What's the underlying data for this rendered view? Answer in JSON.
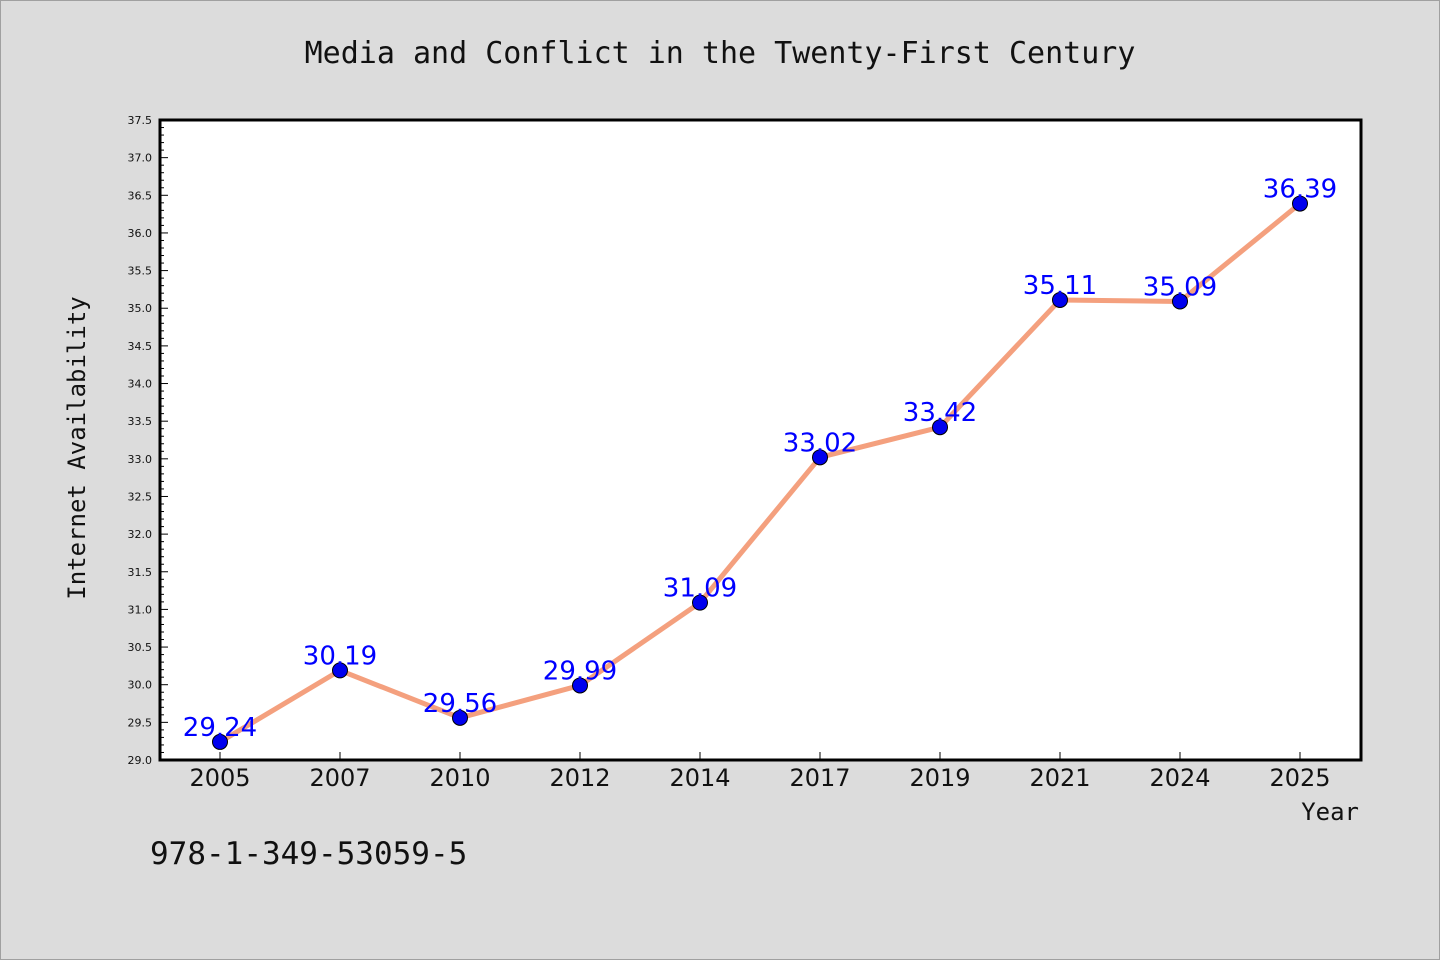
{
  "chart_data": {
    "type": "line",
    "title": "Media and Conflict in the Twenty-First Century",
    "xlabel": "Year",
    "ylabel": "Internet Availability",
    "categories": [
      "2005",
      "2007",
      "2010",
      "2012",
      "2014",
      "2017",
      "2019",
      "2021",
      "2024",
      "2025"
    ],
    "series": [
      {
        "values": [
          29.24,
          30.19,
          29.56,
          29.99,
          31.09,
          33.02,
          33.42,
          35.11,
          35.09,
          36.39
        ],
        "data_labels": [
          "29.24",
          "30.19",
          "29.56",
          "29.99",
          "31.09",
          "33.02",
          "33.42",
          "35.11",
          "35.09",
          "36.39"
        ],
        "line_color": "#f4a07e",
        "marker_color": "#0000ee"
      }
    ],
    "ylim": [
      29.0,
      37.5
    ],
    "yticks": [
      "29.0",
      "29.5",
      "30.0",
      "30.5",
      "31.0",
      "31.5",
      "32.0",
      "32.5",
      "33.0",
      "33.5",
      "34.0",
      "34.5",
      "35.0",
      "35.5",
      "36.0",
      "36.5",
      "37.0",
      "37.5"
    ],
    "grid": false,
    "label_color": "#0000ff",
    "background": "#dcdcdc",
    "plot_background": "#ffffff"
  },
  "footer": {
    "isbn": "978-1-349-53059-5"
  }
}
